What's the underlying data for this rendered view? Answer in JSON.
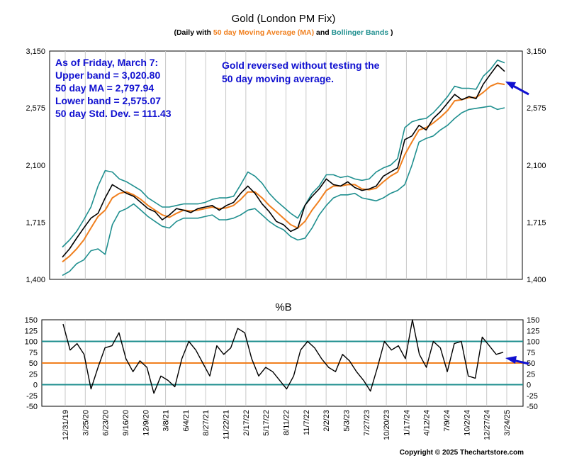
{
  "title": "Gold (London PM Fix)",
  "subtitle": {
    "prefix": "(Daily with ",
    "ma": "50 day Moving Average (MA)",
    "mid": " and ",
    "bb": "Bollinger Bands",
    "suffix": ")"
  },
  "colors": {
    "price": "#000000",
    "ma": "#f07f1e",
    "bands": "#1f8f8f",
    "annotation": "#1010d0",
    "grid": "#c8c8c8"
  },
  "info_box": [
    "As of Friday, March 7:",
    "Upper band = 3,020.80",
    "50 day MA = 2,797.94",
    "Lower band = 2,575.07",
    "50 day Std. Dev. = 111.43"
  ],
  "annotation": [
    "Gold reversed without testing the",
    "50 day moving average."
  ],
  "pb_title": "%B",
  "copyright": "Copyright © 2025 Thechartstore.com",
  "chart_data": [
    {
      "type": "line",
      "title": "Gold (London PM Fix)",
      "ylim": [
        1400,
        3150
      ],
      "yticks": [
        1400,
        1715,
        2100,
        2575,
        3150
      ],
      "ytick_labels": [
        "1,400",
        "1,715",
        "2,100",
        "2,575",
        "3,150"
      ],
      "y_scale": "log",
      "grid": "vertical",
      "x_labels": [
        "12/31/19",
        "3/25/20",
        "6/23/20",
        "9/16/20",
        "12/9/20",
        "3/8/21",
        "6/4/21",
        "8/27/21",
        "11/22/21",
        "2/17/22",
        "5/17/22",
        "8/11/22",
        "11/7/22",
        "2/2/23",
        "5/3/23",
        "7/27/23",
        "10/20/23",
        "1/17/24",
        "4/12/24",
        "7/9/24",
        "10/2/24",
        "12/27/24",
        "3/24/25"
      ],
      "series": [
        {
          "name": "Gold",
          "values": [
            1515,
            1560,
            1620,
            1680,
            1740,
            1770,
            1870,
            1960,
            1930,
            1900,
            1880,
            1840,
            1800,
            1780,
            1730,
            1760,
            1800,
            1790,
            1775,
            1800,
            1810,
            1820,
            1790,
            1820,
            1840,
            1900,
            1950,
            1900,
            1830,
            1780,
            1720,
            1700,
            1660,
            1680,
            1820,
            1880,
            1930,
            2000,
            1960,
            1950,
            1980,
            1940,
            1920,
            1930,
            1950,
            2020,
            2050,
            2080,
            2300,
            2330,
            2420,
            2380,
            2480,
            2540,
            2620,
            2700,
            2650,
            2680,
            2660,
            2800,
            2900,
            3000,
            2930
          ]
        },
        {
          "name": "50 day Moving Average (MA)",
          "values": [
            1490,
            1520,
            1560,
            1610,
            1680,
            1750,
            1790,
            1870,
            1900,
            1910,
            1890,
            1860,
            1820,
            1790,
            1760,
            1745,
            1770,
            1790,
            1785,
            1790,
            1800,
            1810,
            1800,
            1805,
            1820,
            1860,
            1910,
            1910,
            1870,
            1820,
            1780,
            1740,
            1700,
            1680,
            1720,
            1790,
            1850,
            1920,
            1950,
            1950,
            1960,
            1960,
            1930,
            1925,
            1935,
            1980,
            2020,
            2050,
            2180,
            2280,
            2380,
            2400,
            2440,
            2490,
            2550,
            2640,
            2650,
            2670,
            2670,
            2720,
            2780,
            2810,
            2798
          ]
        },
        {
          "name": "Upper band",
          "values": [
            1570,
            1610,
            1660,
            1730,
            1810,
            1950,
            2060,
            2050,
            2000,
            1980,
            1950,
            1920,
            1870,
            1840,
            1810,
            1810,
            1820,
            1830,
            1830,
            1830,
            1840,
            1860,
            1870,
            1870,
            1880,
            1960,
            2050,
            2020,
            1970,
            1900,
            1850,
            1810,
            1770,
            1740,
            1820,
            1900,
            1950,
            2030,
            2030,
            2010,
            2020,
            2000,
            1990,
            2000,
            2050,
            2080,
            2100,
            2150,
            2400,
            2450,
            2470,
            2480,
            2530,
            2600,
            2680,
            2780,
            2760,
            2760,
            2750,
            2880,
            2950,
            3050,
            3021
          ]
        },
        {
          "name": "Lower band",
          "values": [
            1420,
            1440,
            1480,
            1500,
            1550,
            1560,
            1530,
            1700,
            1780,
            1800,
            1830,
            1790,
            1750,
            1720,
            1690,
            1680,
            1720,
            1740,
            1740,
            1740,
            1750,
            1760,
            1730,
            1730,
            1740,
            1760,
            1790,
            1800,
            1760,
            1720,
            1690,
            1670,
            1630,
            1610,
            1620,
            1680,
            1760,
            1820,
            1870,
            1890,
            1890,
            1900,
            1870,
            1860,
            1850,
            1870,
            1900,
            1920,
            1960,
            2100,
            2280,
            2310,
            2330,
            2380,
            2420,
            2480,
            2530,
            2560,
            2570,
            2580,
            2590,
            2560,
            2575
          ]
        }
      ]
    },
    {
      "type": "line",
      "title": "%B",
      "ylim": [
        -50,
        150
      ],
      "yticks": [
        -50,
        -25,
        0,
        25,
        50,
        75,
        100,
        125,
        150
      ],
      "reference_lines": [
        0,
        50,
        100
      ],
      "grid": "vertical",
      "series": [
        {
          "name": "%B",
          "values": [
            140,
            80,
            95,
            70,
            -10,
            40,
            85,
            90,
            120,
            60,
            30,
            55,
            40,
            -20,
            20,
            10,
            -5,
            60,
            100,
            80,
            50,
            20,
            90,
            70,
            85,
            130,
            120,
            60,
            20,
            40,
            30,
            10,
            -10,
            20,
            80,
            100,
            85,
            60,
            40,
            30,
            70,
            55,
            30,
            10,
            -15,
            40,
            100,
            80,
            90,
            60,
            150,
            70,
            40,
            100,
            85,
            30,
            95,
            100,
            20,
            15,
            110,
            90,
            70,
            75
          ]
        }
      ]
    }
  ]
}
